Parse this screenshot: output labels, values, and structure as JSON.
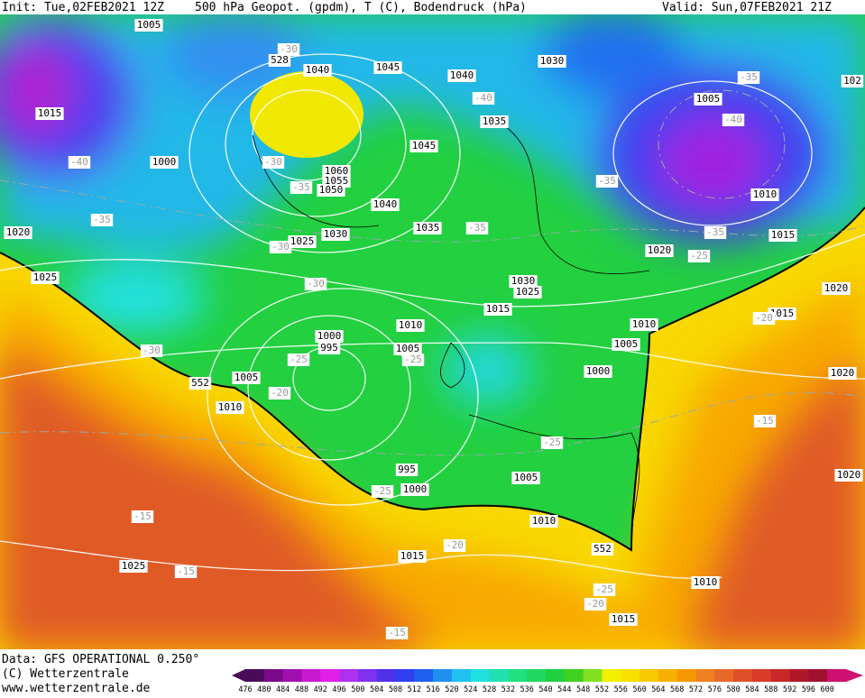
{
  "header": {
    "init": "Init: Tue,02FEB2021 12Z",
    "title": "500 hPa Geopot. (gpdm), T (C), Bodendruck (hPa)",
    "valid": "Valid: Sun,07FEB2021 21Z"
  },
  "footer": {
    "data": "Data: GFS OPERATIONAL 0.250°",
    "copyright": "(C) Wetterzentrale",
    "url": "www.wetterzentrale.de"
  },
  "isobar_labels": [
    "1005",
    "1040",
    "1045",
    "1040",
    "1030",
    "1015",
    "1005",
    "1000",
    "1060",
    "1055",
    "1050",
    "1045",
    "1040",
    "1035",
    "1030",
    "1025",
    "1035",
    "1010",
    "1015",
    "1020",
    "1025",
    "1020",
    "1030",
    "1025",
    "1015",
    "1010",
    "1010",
    "1000",
    "995",
    "1005",
    "1005",
    "1000",
    "1005",
    "1010",
    "995",
    "1000",
    "1005",
    "1010",
    "1015",
    "1025",
    "1010",
    "1015",
    "1020",
    "1015",
    "1020",
    "1020",
    "102"
  ],
  "temperature_labels": [
    "-30",
    "-35",
    "-40",
    "-40",
    "-40",
    "-30",
    "-35",
    "-35",
    "-35",
    "-35",
    "-35",
    "-30",
    "-25",
    "-30",
    "-30",
    "-25",
    "-25",
    "-20",
    "-20",
    "-15",
    "-25",
    "-25",
    "-15",
    "-15",
    "-20",
    "-25",
    "-20",
    "-15"
  ],
  "geopotential_labels": [
    "528",
    "552",
    "552"
  ],
  "legend": {
    "values": [
      476,
      480,
      484,
      488,
      492,
      496,
      500,
      504,
      508,
      512,
      516,
      520,
      524,
      528,
      532,
      536,
      540,
      544,
      548,
      552,
      556,
      560,
      564,
      568,
      572,
      576,
      580,
      584,
      588,
      592,
      596,
      600
    ],
    "colors": [
      "#4a0a5a",
      "#7a0a8a",
      "#a010b0",
      "#c818d0",
      "#e020e8",
      "#b030f0",
      "#8030f0",
      "#5030e8",
      "#3040f0",
      "#2060f0",
      "#2090f0",
      "#20c0f0",
      "#20e0e0",
      "#20e0b0",
      "#20e080",
      "#20d860",
      "#20d040",
      "#40d020",
      "#80e020",
      "#f0f000",
      "#f8e000",
      "#f8c800",
      "#f8b000",
      "#f89800",
      "#f08020",
      "#e86828",
      "#e05028",
      "#d83c28",
      "#c82828",
      "#b01828",
      "#a01030",
      "#d01070"
    ]
  }
}
